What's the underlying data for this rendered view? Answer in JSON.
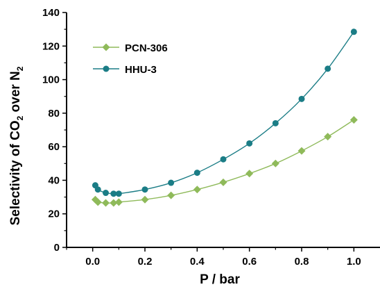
{
  "chart_data": {
    "type": "line",
    "x_label": "P / bar",
    "y_label": {
      "prefix": "Selectivity of CO",
      "sub1": "2",
      "mid": " over N",
      "sub2": "2"
    },
    "xlim": [
      -0.1,
      1.1
    ],
    "ylim": [
      0,
      140
    ],
    "x_ticks": [
      "0.0",
      "0.2",
      "0.4",
      "0.6",
      "0.8",
      "1.0"
    ],
    "y_ticks": [
      "0",
      "20",
      "40",
      "60",
      "80",
      "100",
      "120",
      "140"
    ],
    "legend_position": "top-left",
    "grid": false,
    "series": [
      {
        "name": "PCN-306",
        "color": "#8fba5a",
        "marker": "diamond",
        "x": [
          0.01,
          0.02,
          0.05,
          0.08,
          0.1,
          0.2,
          0.3,
          0.4,
          0.5,
          0.6,
          0.7,
          0.8,
          0.9,
          1.0
        ],
        "y": [
          28.5,
          27.0,
          26.5,
          26.5,
          27.0,
          28.5,
          31.0,
          34.5,
          38.8,
          44.0,
          50.0,
          57.5,
          66.0,
          76.0
        ]
      },
      {
        "name": "HHU-3",
        "color": "#1b7d86",
        "marker": "circle",
        "x": [
          0.01,
          0.02,
          0.05,
          0.08,
          0.1,
          0.2,
          0.3,
          0.4,
          0.5,
          0.6,
          0.7,
          0.8,
          0.9,
          1.0
        ],
        "y": [
          37.0,
          34.5,
          32.5,
          32.0,
          32.0,
          34.5,
          38.5,
          44.5,
          52.5,
          62.0,
          74.0,
          88.5,
          106.5,
          128.5
        ]
      }
    ]
  }
}
